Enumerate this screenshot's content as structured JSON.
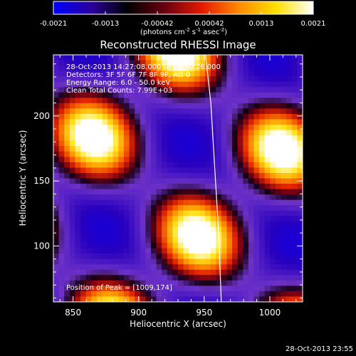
{
  "colorbar": {
    "ticks": [
      "-0.0021",
      "-0.0013",
      "-0.00042",
      "0.00042",
      "0.0013",
      "0.0021"
    ],
    "units_main": "(photons cm",
    "units_exp1": "-2",
    "units_mid1": " s",
    "units_exp2": "-1",
    "units_mid2": " asec",
    "units_exp3": "-2",
    "units_end": ")",
    "stops": [
      "#0000ff",
      "#2a00a0",
      "#000000",
      "#6a0010",
      "#e41a00",
      "#ff8a00",
      "#ffe000",
      "#ffffff"
    ]
  },
  "timestamp": "28-Oct-2013 23:55",
  "annotations": [
    "28-Oct-2013 14:27:08.000 to 14:30:26.000",
    "Detectors: 3F 5F 6F 7F 8F 9F, Att 0",
    "Energy Range: 6.0 - 50.0 keV",
    "Clean    Total Counts: 7.99E+03"
  ],
  "peak_label": "Position of Peak = [1009,174]",
  "chart_data": {
    "type": "heatmap",
    "title": "Reconstructed RHESSI Image",
    "xlabel": "Heliocentric X (arcsec)",
    "ylabel": "Heliocentric Y (arcsec)",
    "xlim": [
      835,
      1025
    ],
    "ylim": [
      57,
      247
    ],
    "x_ticks": [
      850,
      900,
      950,
      1000
    ],
    "y_ticks": [
      100,
      150,
      200
    ],
    "value_range": [
      -0.0021,
      0.0021
    ],
    "peak": [
      1009,
      174
    ],
    "limb_arc": [
      [
        951,
        247
      ],
      [
        955,
        210
      ],
      [
        958,
        160
      ],
      [
        961,
        110
      ],
      [
        963,
        57
      ]
    ]
  }
}
